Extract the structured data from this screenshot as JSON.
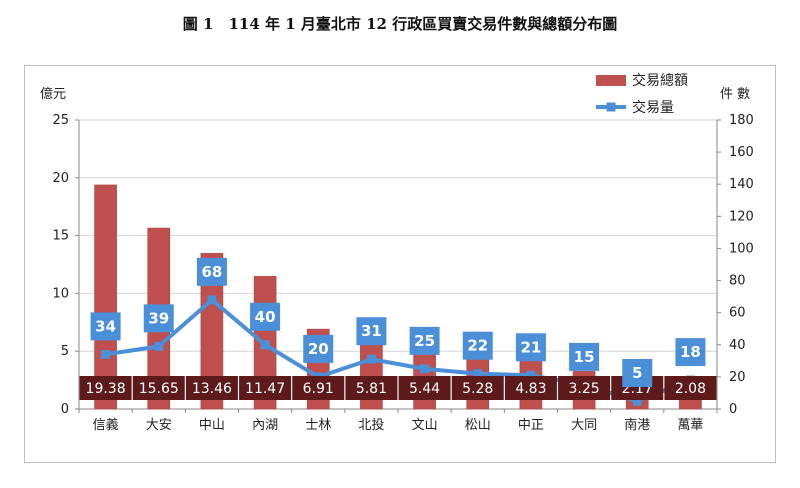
{
  "figure_title": "圖 1　114 年 1 月臺北市 12 行政區買賣交易件數與總額分布圖",
  "chart_data": {
    "type": "bar",
    "categories": [
      "信義",
      "大安",
      "中山",
      "內湖",
      "士林",
      "北投",
      "文山",
      "松山",
      "中正",
      "大同",
      "南港",
      "萬華"
    ],
    "series": [
      {
        "name": "交易總額",
        "type": "bar",
        "axis": "left",
        "color": "#c0504d",
        "values": [
          19.38,
          15.65,
          13.46,
          11.47,
          6.91,
          5.81,
          5.44,
          5.28,
          4.83,
          3.25,
          2.17,
          2.08
        ]
      },
      {
        "name": "交易量",
        "type": "line",
        "axis": "right",
        "color": "#4a8fd8",
        "values": [
          34,
          39,
          68,
          40,
          20,
          31,
          25,
          22,
          21,
          15,
          5,
          18
        ]
      }
    ],
    "ylabel_left": "億元",
    "ylabel_right": "件 數",
    "ylim_left": [
      0,
      25
    ],
    "yticks_left": [
      0,
      5,
      10,
      15,
      20,
      25
    ],
    "ylim_right": [
      0,
      180
    ],
    "yticks_right": [
      0,
      20,
      40,
      60,
      80,
      100,
      120,
      140,
      160,
      180
    ],
    "legend_position": "top-right",
    "grid": "horizontal",
    "bar_label_color": "#5c1a1a",
    "line_label_color": "#4a8fd8"
  }
}
